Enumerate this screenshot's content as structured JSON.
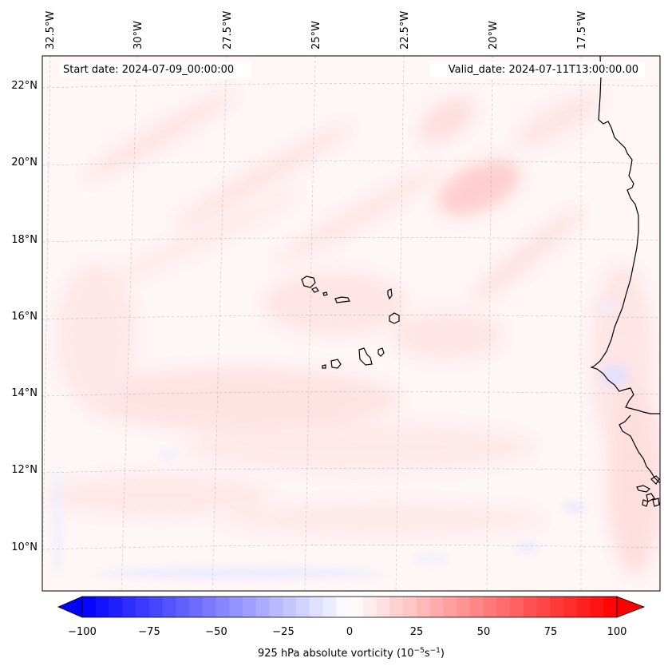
{
  "map": {
    "start_date_label": "Start date: 2024-07-09_00:00:00",
    "valid_date_label": "Valid_date: 2024-07-11T13:00:00.00",
    "lon_labels": [
      "32.5°W",
      "30°W",
      "27.5°W",
      "25°W",
      "22.5°W",
      "20°W",
      "17.5°W"
    ],
    "lat_labels": [
      "22°N",
      "20°N",
      "18°N",
      "16°N",
      "14°N",
      "12°N",
      "10°N"
    ],
    "features": [
      "Cape Verde islands",
      "West African coastline"
    ]
  },
  "colorbar": {
    "label_main": "925 hPa absolute vorticity (10",
    "label_exp1": "−5",
    "label_mid": "s",
    "label_exp2": "−1",
    "label_end": ")",
    "ticks": [
      "−100",
      "−75",
      "−50",
      "−25",
      "0",
      "25",
      "50",
      "75",
      "100"
    ],
    "min": -100,
    "max": 100,
    "colors": {
      "negative": "#0000ff",
      "zero": "#ffffff",
      "positive": "#ff0000",
      "coast": "#000000"
    }
  }
}
